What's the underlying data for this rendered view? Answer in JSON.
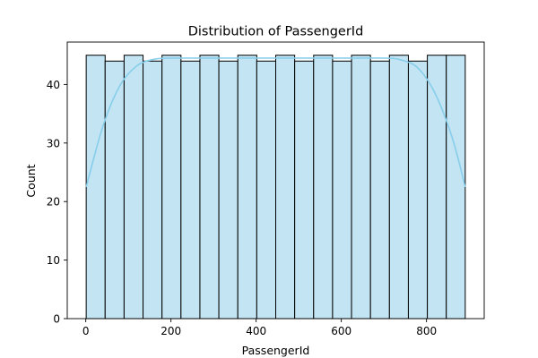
{
  "chart_data": {
    "type": "bar",
    "title": "Distribution of PassengerId",
    "xlabel": "PassengerId",
    "ylabel": "Count",
    "xlim": [
      -43.5,
      935.5
    ],
    "ylim": [
      0,
      47.25
    ],
    "x_ticks": [
      0,
      200,
      400,
      600,
      800
    ],
    "y_ticks": [
      0,
      10,
      20,
      30,
      40
    ],
    "grid": false,
    "bins": {
      "edges": [
        1,
        45.5,
        90,
        134.5,
        179,
        223.5,
        268,
        312.5,
        357,
        401.5,
        446,
        490.5,
        535,
        579.5,
        624,
        668.5,
        713,
        757.5,
        802,
        846.5,
        891
      ],
      "counts": [
        45,
        44,
        45,
        44,
        45,
        44,
        45,
        44,
        45,
        44,
        45,
        44,
        45,
        44,
        45,
        44,
        45,
        44,
        45,
        45
      ]
    },
    "kde": {
      "x": [
        1,
        40,
        80,
        120,
        160,
        200,
        300,
        400,
        500,
        600,
        700,
        740,
        780,
        820,
        860,
        891
      ],
      "y": [
        22.5,
        32.8,
        39.8,
        43.2,
        44.3,
        44.5,
        44.5,
        44.5,
        44.5,
        44.5,
        44.5,
        44.2,
        42.8,
        38.5,
        31,
        22.5
      ]
    },
    "colors": {
      "bar_fill": "#c3e4f2",
      "bar_edge": "#000000",
      "kde_line": "#87ceeb"
    }
  }
}
